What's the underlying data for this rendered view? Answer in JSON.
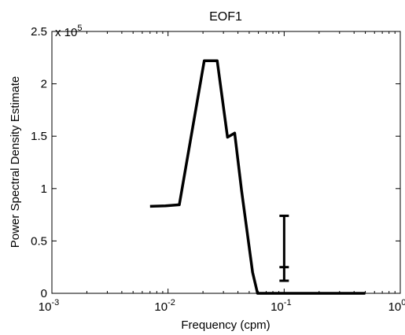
{
  "chart_data": {
    "type": "line",
    "title": "EOF1",
    "xlabel": "Frequency (cpm)",
    "ylabel": "Power Spectral Density Estimate",
    "xscale": "log",
    "xlim": [
      0.001,
      1
    ],
    "ylim": [
      0,
      250000
    ],
    "y_multiplier_label": {
      "base": "x 10",
      "exponent": "5"
    },
    "x_ticks": [
      {
        "value": 0.001,
        "base": "10",
        "exp": "-3"
      },
      {
        "value": 0.01,
        "base": "10",
        "exp": "-2"
      },
      {
        "value": 0.1,
        "base": "10",
        "exp": "-1"
      },
      {
        "value": 1,
        "base": "10",
        "exp": "0"
      }
    ],
    "y_ticks": [
      {
        "value": 0,
        "label": "0"
      },
      {
        "value": 50000,
        "label": "0.5"
      },
      {
        "value": 100000,
        "label": "1"
      },
      {
        "value": 150000,
        "label": "1.5"
      },
      {
        "value": 200000,
        "label": "2"
      },
      {
        "value": 250000,
        "label": "2.5"
      }
    ],
    "grid": false,
    "series": [
      {
        "color": "#000000",
        "points": [
          [
            0.007,
            83000
          ],
          [
            0.0095,
            83500
          ],
          [
            0.0125,
            84500
          ],
          [
            0.0205,
            222000
          ],
          [
            0.0265,
            222000
          ],
          [
            0.0325,
            149000
          ],
          [
            0.0375,
            153000
          ],
          [
            0.043,
            98000
          ],
          [
            0.0535,
            20000
          ],
          [
            0.059,
            0
          ],
          [
            0.5,
            0
          ]
        ]
      }
    ],
    "error_bar": {
      "x": 0.1,
      "upper": 74000,
      "lower": 12000,
      "center": 25000,
      "color": "#000000"
    }
  }
}
